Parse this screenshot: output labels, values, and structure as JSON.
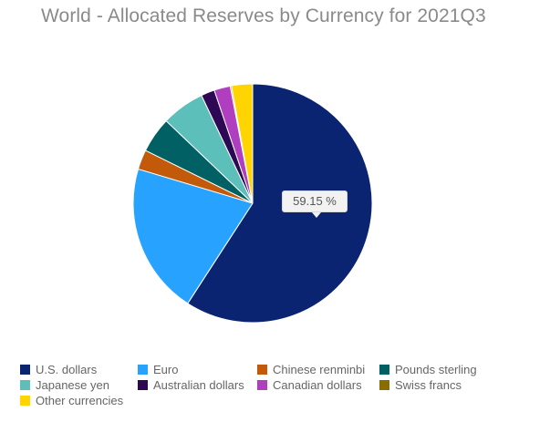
{
  "chart_data": {
    "type": "pie",
    "title": "World - Allocated Reserves by Currency for 2021Q3",
    "categories": [
      "U.S. dollars",
      "Euro",
      "Chinese renminbi",
      "Pounds sterling",
      "Japanese yen",
      "Australian dollars",
      "Canadian dollars",
      "Swiss francs",
      "Other currencies"
    ],
    "values": [
      59.15,
      20.48,
      2.66,
      4.83,
      5.83,
      1.84,
      2.2,
      0.17,
      2.84
    ],
    "colors": [
      "#0a2472",
      "#27a3ff",
      "#c25a0a",
      "#006064",
      "#5cbfb9",
      "#2e0854",
      "#b03fc0",
      "#8a6d00",
      "#ffd400"
    ],
    "tooltip": "59.15 %",
    "legend_position": "bottom"
  }
}
